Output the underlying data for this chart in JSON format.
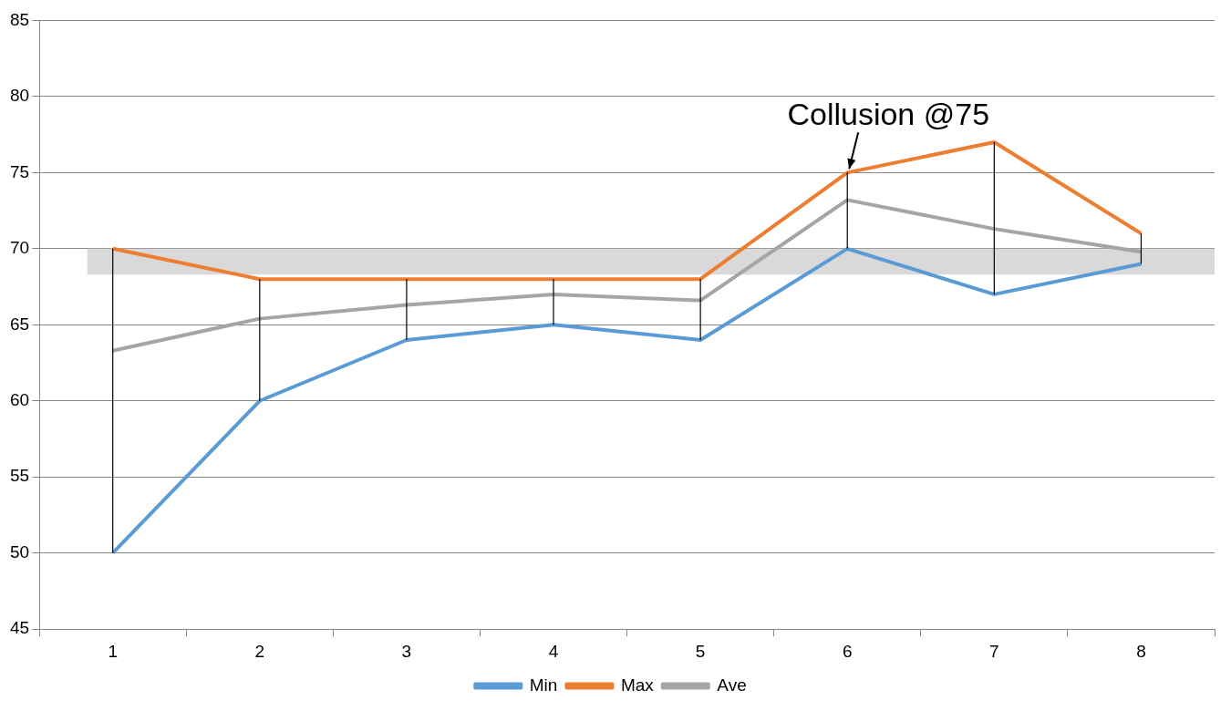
{
  "chart_data": {
    "type": "line",
    "categories": [
      "1",
      "2",
      "3",
      "4",
      "5",
      "6",
      "7",
      "8"
    ],
    "series": [
      {
        "name": "Min",
        "color": "#5b9bd5",
        "values": [
          50,
          60,
          64,
          65,
          64,
          70,
          67,
          69
        ]
      },
      {
        "name": "Max",
        "color": "#ed7d31",
        "values": [
          70,
          68,
          68,
          68,
          68,
          75,
          77,
          71
        ],
        "errors": [
          [
            50,
            70
          ],
          [
            60,
            68
          ],
          [
            64,
            68
          ],
          [
            65,
            68
          ],
          [
            64,
            68
          ],
          [
            70,
            75
          ],
          [
            67,
            77
          ],
          [
            69,
            71
          ]
        ]
      },
      {
        "name": "Ave",
        "color": "#a5a5a5",
        "values": [
          63.3,
          65.4,
          66.3,
          67,
          66.6,
          73.2,
          71.3,
          69.8
        ]
      }
    ],
    "ylim": [
      45,
      85
    ],
    "yticks": [
      45,
      50,
      55,
      60,
      65,
      70,
      75,
      80,
      85
    ],
    "grid": "y",
    "legend": "bottom",
    "marker": "none",
    "line_style": "solid",
    "bands": [
      {
        "axis": "y",
        "from": 68.3,
        "to": 70,
        "color": "#d9d9d9"
      }
    ],
    "annotations": [
      {
        "text": "Collusion @75",
        "x": "6",
        "y": 75
      }
    ]
  }
}
